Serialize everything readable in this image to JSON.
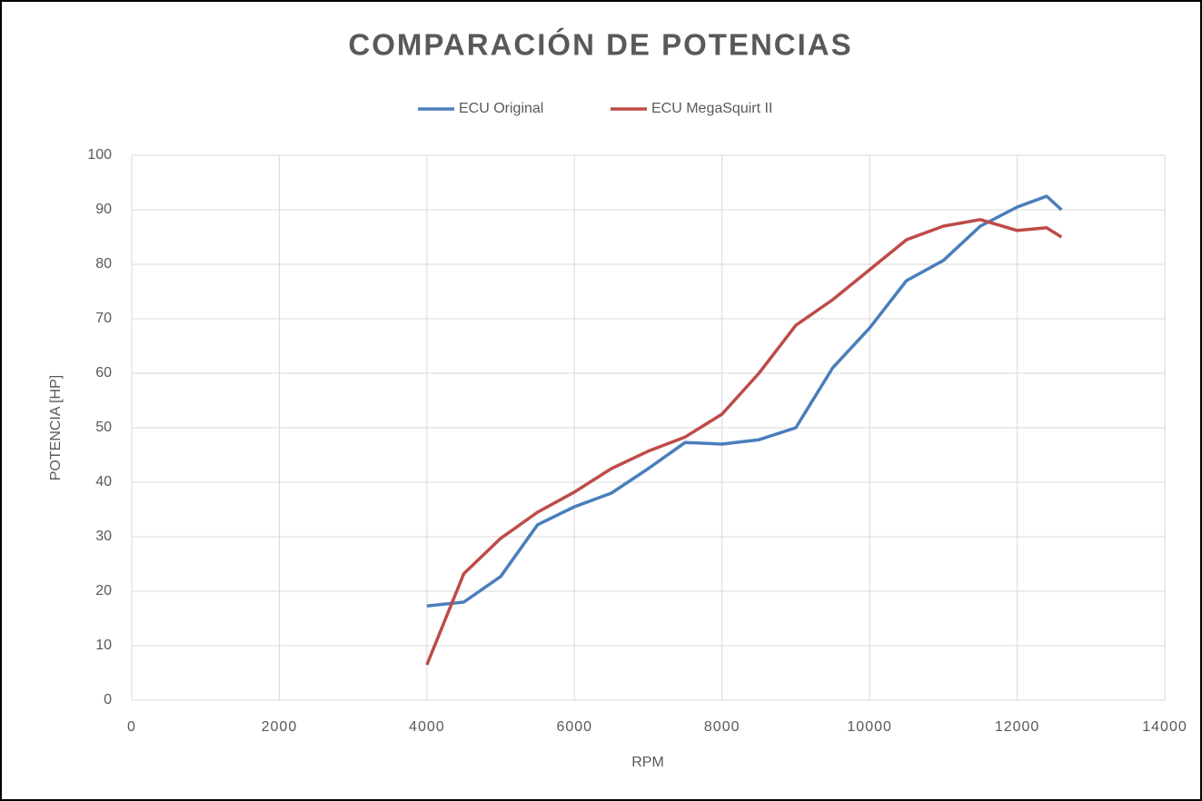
{
  "chart_data": {
    "type": "line",
    "title": "COMPARACIÓN DE POTENCIAS",
    "x_label": "RPM",
    "y_label": "POTENCIA [HP]",
    "xlim": [
      0,
      14000
    ],
    "xticks": [
      0,
      2000,
      4000,
      6000,
      8000,
      10000,
      12000,
      14000
    ],
    "ylim": [
      0,
      100
    ],
    "yticks": [
      0,
      10,
      20,
      30,
      40,
      50,
      60,
      70,
      80,
      90,
      100
    ],
    "grid": true,
    "legend": "top",
    "series": [
      {
        "name": "ECU Original",
        "color": "#4a7ebb",
        "x": [
          4000,
          4500,
          5000,
          5500,
          6000,
          6500,
          7000,
          7500,
          8000,
          8500,
          9000,
          9500,
          10000,
          10500,
          11000,
          11500,
          12000,
          12400,
          12600
        ],
        "values": [
          17.3,
          18,
          22.7,
          32.2,
          35.5,
          38,
          42.5,
          47.3,
          47,
          47.8,
          50,
          61,
          68.3,
          77,
          80.7,
          87,
          90.5,
          92.5,
          90
        ]
      },
      {
        "name": "ECU MegaSquirt II",
        "color": "#be4b48",
        "x": [
          4000,
          4500,
          5000,
          5500,
          6000,
          6500,
          7000,
          7500,
          8000,
          8500,
          9000,
          9500,
          10000,
          10500,
          11000,
          11500,
          12000,
          12400,
          12600
        ],
        "values": [
          6.5,
          23.2,
          29.7,
          34.5,
          38.2,
          42.5,
          45.7,
          48.3,
          52.5,
          60,
          68.8,
          73.5,
          79,
          84.5,
          87,
          88.2,
          86.2,
          86.7,
          85
        ]
      }
    ]
  }
}
